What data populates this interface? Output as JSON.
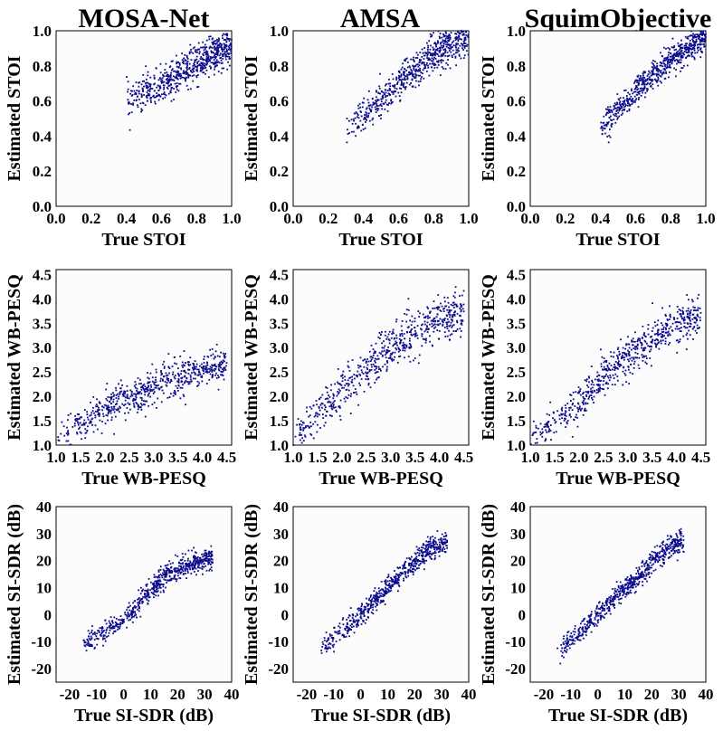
{
  "colors": {
    "points": "#0a0a8c",
    "background": "#fcfcfc"
  },
  "columns": [
    "MOSA-Net",
    "AMSA",
    "SquimObjective"
  ],
  "chart_data": [
    {
      "type": "scatter",
      "title": "MOSA-Net",
      "xlabel": "True STOI",
      "ylabel": "Estimated STOI",
      "xlim": [
        0,
        1
      ],
      "ylim": [
        0,
        1
      ],
      "xticks": [
        0.0,
        0.2,
        0.4,
        0.6,
        0.8,
        1.0
      ],
      "yticks": [
        0.0,
        0.2,
        0.4,
        0.6,
        0.8,
        1.0
      ],
      "trend": [
        [
          0.4,
          0.6
        ],
        [
          0.6,
          0.68
        ],
        [
          0.8,
          0.82
        ],
        [
          1.0,
          0.92
        ]
      ],
      "spread": 0.05
    },
    {
      "type": "scatter",
      "title": "AMSA",
      "xlabel": "True STOI",
      "ylabel": "Estimated STOI",
      "xlim": [
        0,
        1
      ],
      "ylim": [
        0,
        1
      ],
      "xticks": [
        0.0,
        0.2,
        0.4,
        0.6,
        0.8,
        1.0
      ],
      "yticks": [
        0.0,
        0.2,
        0.4,
        0.6,
        0.8,
        1.0
      ],
      "trend": [
        [
          0.3,
          0.45
        ],
        [
          0.5,
          0.6
        ],
        [
          0.8,
          0.87
        ],
        [
          1.0,
          0.97
        ]
      ],
      "spread": 0.05
    },
    {
      "type": "scatter",
      "title": "SquimObjective",
      "xlabel": "True STOI",
      "ylabel": "Estimated STOI",
      "xlim": [
        0,
        1
      ],
      "ylim": [
        0,
        1
      ],
      "xticks": [
        0.0,
        0.2,
        0.4,
        0.6,
        0.8,
        1.0
      ],
      "yticks": [
        0.0,
        0.2,
        0.4,
        0.6,
        0.8,
        1.0
      ],
      "trend": [
        [
          0.4,
          0.45
        ],
        [
          0.6,
          0.65
        ],
        [
          0.8,
          0.84
        ],
        [
          1.0,
          0.96
        ]
      ],
      "spread": 0.04
    },
    {
      "type": "scatter",
      "xlabel": "True WB-PESQ",
      "ylabel": "Estimated WB-PESQ",
      "xlim": [
        1.0,
        4.6
      ],
      "ylim": [
        1.0,
        4.6
      ],
      "xticks": [
        1.0,
        1.5,
        2.0,
        2.5,
        3.0,
        3.5,
        4.0,
        4.5
      ],
      "yticks": [
        1.0,
        1.5,
        2.0,
        2.5,
        3.0,
        3.5,
        4.0,
        4.5
      ],
      "trend": [
        [
          1.0,
          1.15
        ],
        [
          2.0,
          1.75
        ],
        [
          3.0,
          2.2
        ],
        [
          4.0,
          2.55
        ],
        [
          4.5,
          2.65
        ]
      ],
      "spread": 0.18
    },
    {
      "type": "scatter",
      "xlabel": "True WB-PESQ",
      "ylabel": "Estimated WB-PESQ",
      "xlim": [
        1.0,
        4.6
      ],
      "ylim": [
        1.0,
        4.6
      ],
      "xticks": [
        1.0,
        1.5,
        2.0,
        2.5,
        3.0,
        3.5,
        4.0,
        4.5
      ],
      "yticks": [
        1.0,
        1.5,
        2.0,
        2.5,
        3.0,
        3.5,
        4.0,
        4.5
      ],
      "trend": [
        [
          1.0,
          1.1
        ],
        [
          2.0,
          2.1
        ],
        [
          3.0,
          3.0
        ],
        [
          4.0,
          3.6
        ],
        [
          4.5,
          3.7
        ]
      ],
      "spread": 0.22
    },
    {
      "type": "scatter",
      "xlabel": "True WB-PESQ",
      "ylabel": "Estimated WB-PESQ",
      "xlim": [
        1.0,
        4.6
      ],
      "ylim": [
        1.0,
        4.6
      ],
      "xticks": [
        1.0,
        1.5,
        2.0,
        2.5,
        3.0,
        3.5,
        4.0,
        4.5
      ],
      "yticks": [
        1.0,
        1.5,
        2.0,
        2.5,
        3.0,
        3.5,
        4.0,
        4.5
      ],
      "trend": [
        [
          1.0,
          1.1
        ],
        [
          2.0,
          1.9
        ],
        [
          3.0,
          2.8
        ],
        [
          4.0,
          3.5
        ],
        [
          4.5,
          3.7
        ]
      ],
      "spread": 0.2
    },
    {
      "type": "scatter",
      "xlabel": "True SI-SDR (dB)",
      "ylabel": "Estimated SI-SDR (dB)",
      "xlim": [
        -25,
        40
      ],
      "ylim": [
        -25,
        40
      ],
      "xticks": [
        -20,
        -10,
        0,
        10,
        20,
        30,
        40
      ],
      "yticks": [
        -20,
        -10,
        0,
        10,
        20,
        30,
        40
      ],
      "trend": [
        [
          -15,
          -11
        ],
        [
          0,
          -2
        ],
        [
          15,
          14
        ],
        [
          25,
          19
        ],
        [
          33,
          21
        ]
      ],
      "spread": 2.0
    },
    {
      "type": "scatter",
      "xlabel": "True SI-SDR (dB)",
      "ylabel": "Estimated SI-SDR (dB)",
      "xlim": [
        -25,
        40
      ],
      "ylim": [
        -25,
        40
      ],
      "xticks": [
        -20,
        -10,
        0,
        10,
        20,
        30,
        40
      ],
      "yticks": [
        -20,
        -10,
        0,
        10,
        20,
        30,
        40
      ],
      "trend": [
        [
          -15,
          -13
        ],
        [
          0,
          0
        ],
        [
          15,
          15
        ],
        [
          25,
          24
        ],
        [
          32,
          27
        ]
      ],
      "spread": 2.0
    },
    {
      "type": "scatter",
      "xlabel": "True SI-SDR (dB)",
      "ylabel": "Estimated SI-SDR (dB)",
      "xlim": [
        -25,
        40
      ],
      "ylim": [
        -25,
        40
      ],
      "xticks": [
        -20,
        -10,
        0,
        10,
        20,
        30,
        40
      ],
      "yticks": [
        -20,
        -10,
        0,
        10,
        20,
        30,
        40
      ],
      "trend": [
        [
          -15,
          -14
        ],
        [
          0,
          0
        ],
        [
          15,
          14
        ],
        [
          25,
          24
        ],
        [
          32,
          27
        ]
      ],
      "spread": 2.0
    }
  ]
}
